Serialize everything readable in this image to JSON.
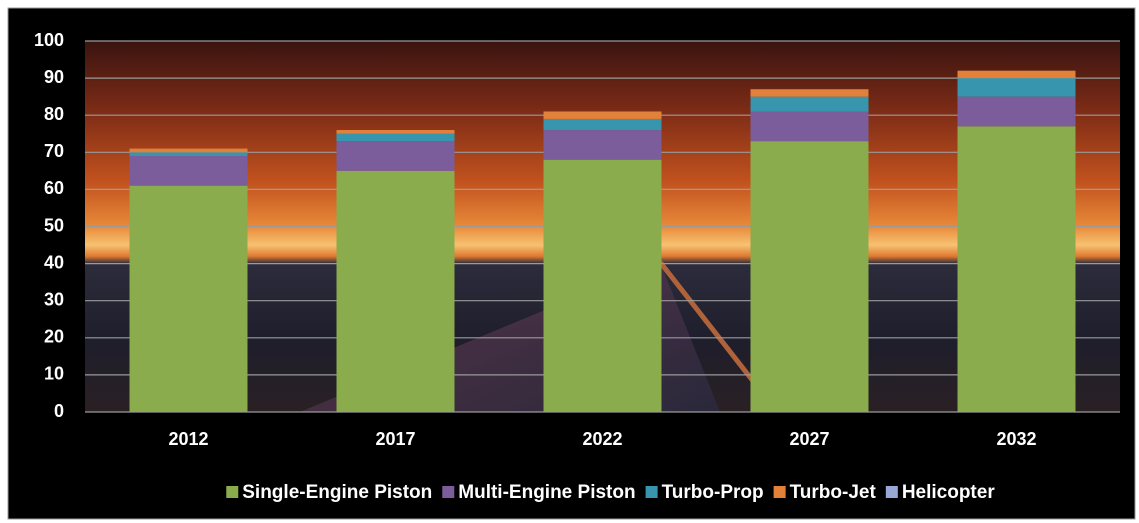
{
  "chart_data": {
    "type": "stacked-bar",
    "categories": [
      "2012",
      "2017",
      "2022",
      "2027",
      "2032"
    ],
    "series": [
      {
        "name": "Single-Engine Piston",
        "color": "#8aac4c",
        "values": [
          61,
          65,
          68,
          73,
          77
        ]
      },
      {
        "name": "Multi-Engine Piston",
        "color": "#7b5d9c",
        "values": [
          8,
          8,
          8,
          8,
          8
        ]
      },
      {
        "name": "Turbo-Prop",
        "color": "#3796ad",
        "values": [
          1,
          2,
          3,
          4,
          5
        ]
      },
      {
        "name": "Turbo-Jet",
        "color": "#e2823a",
        "values": [
          1,
          1,
          2,
          2,
          2
        ]
      },
      {
        "name": "Helicopter",
        "color": "#97a8d6",
        "values": [
          0,
          0,
          0,
          0,
          0
        ]
      }
    ],
    "ylim": [
      0,
      100
    ],
    "yticks": [
      0,
      10,
      20,
      30,
      40,
      50,
      60,
      70,
      80,
      90,
      100
    ],
    "grid": true,
    "legend": "bottom"
  }
}
